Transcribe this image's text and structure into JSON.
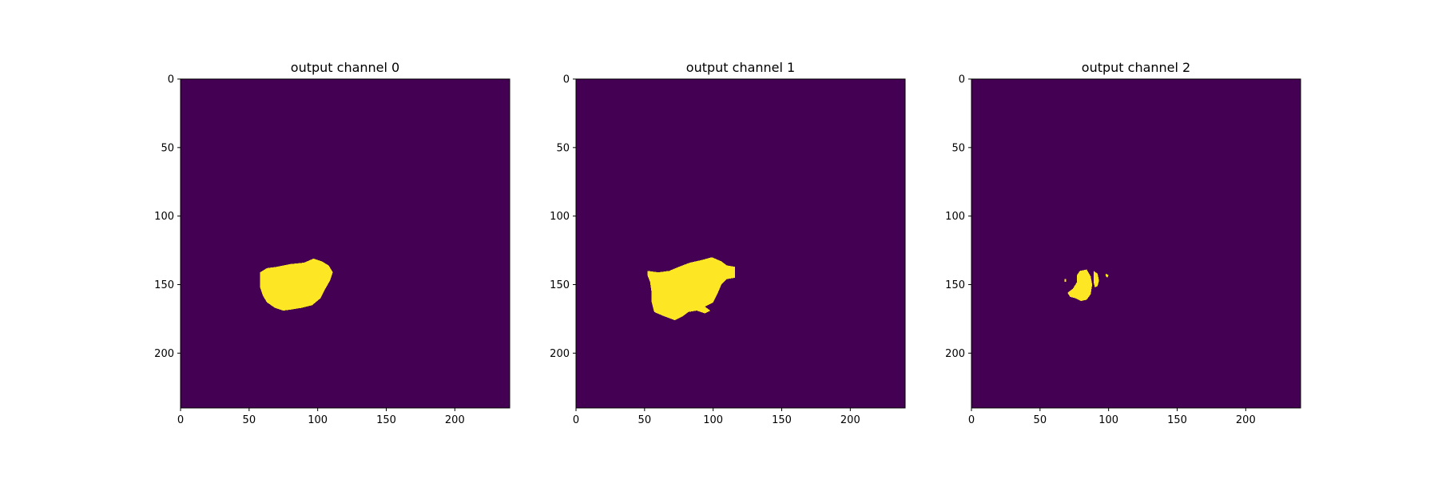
{
  "chart_data": [
    {
      "type": "heatmap",
      "title": "output channel 0",
      "xlabel": "",
      "ylabel": "",
      "xlim": [
        0,
        240
      ],
      "ylim": [
        240,
        0
      ],
      "xticks": [
        0,
        50,
        100,
        150,
        200
      ],
      "yticks": [
        0,
        50,
        100,
        150,
        200
      ],
      "colors": {
        "background": "#440154",
        "mask": "#fde725"
      },
      "mask_outline": [
        [
          58,
          141
        ],
        [
          63,
          138
        ],
        [
          70,
          137
        ],
        [
          80,
          135
        ],
        [
          90,
          134
        ],
        [
          97,
          131
        ],
        [
          103,
          133
        ],
        [
          108,
          136
        ],
        [
          111,
          141
        ],
        [
          109,
          147
        ],
        [
          105,
          154
        ],
        [
          102,
          160
        ],
        [
          96,
          165
        ],
        [
          88,
          167
        ],
        [
          82,
          168
        ],
        [
          75,
          169
        ],
        [
          69,
          167
        ],
        [
          63,
          163
        ],
        [
          60,
          158
        ],
        [
          58,
          152
        ],
        [
          58,
          146
        ]
      ]
    },
    {
      "type": "heatmap",
      "title": "output channel 1",
      "xlabel": "",
      "ylabel": "",
      "xlim": [
        0,
        240
      ],
      "ylim": [
        240,
        0
      ],
      "xticks": [
        0,
        50,
        100,
        150,
        200
      ],
      "yticks": [
        0,
        50,
        100,
        150,
        200
      ],
      "colors": {
        "background": "#440154",
        "mask": "#fde725"
      },
      "mask_outline": [
        [
          52,
          140
        ],
        [
          60,
          141
        ],
        [
          68,
          140
        ],
        [
          75,
          137
        ],
        [
          83,
          134
        ],
        [
          92,
          132
        ],
        [
          99,
          130
        ],
        [
          106,
          133
        ],
        [
          110,
          136
        ],
        [
          116,
          137
        ],
        [
          116,
          145
        ],
        [
          110,
          146
        ],
        [
          106,
          150
        ],
        [
          103,
          157
        ],
        [
          100,
          163
        ],
        [
          94,
          166
        ],
        [
          98,
          169
        ],
        [
          94,
          171
        ],
        [
          88,
          169
        ],
        [
          82,
          170
        ],
        [
          78,
          173
        ],
        [
          72,
          176
        ],
        [
          64,
          173
        ],
        [
          57,
          170
        ],
        [
          55,
          162
        ],
        [
          55,
          155
        ],
        [
          54,
          148
        ],
        [
          52,
          143
        ]
      ]
    },
    {
      "type": "heatmap",
      "title": "output channel 2",
      "xlabel": "",
      "ylabel": "",
      "xlim": [
        0,
        240
      ],
      "ylim": [
        240,
        0
      ],
      "xticks": [
        0,
        50,
        100,
        150,
        200
      ],
      "yticks": [
        0,
        50,
        100,
        150,
        200
      ],
      "colors": {
        "background": "#440154",
        "mask": "#fde725"
      },
      "mask_blobs": [
        [
          [
            79,
            140
          ],
          [
            84,
            139
          ],
          [
            87,
            144
          ],
          [
            88,
            150
          ],
          [
            87,
            157
          ],
          [
            84,
            161
          ],
          [
            80,
            162
          ],
          [
            76,
            160
          ],
          [
            72,
            159
          ],
          [
            70,
            156
          ],
          [
            74,
            153
          ],
          [
            77,
            148
          ],
          [
            77,
            143
          ]
        ],
        [
          [
            89,
            140
          ],
          [
            92,
            142
          ],
          [
            93,
            147
          ],
          [
            92,
            151
          ],
          [
            90,
            152
          ],
          [
            89,
            148
          ]
        ],
        [
          [
            98,
            142
          ],
          [
            100,
            143
          ],
          [
            99,
            145
          ],
          [
            98,
            144
          ]
        ],
        [
          [
            68,
            146
          ],
          [
            69,
            146
          ],
          [
            69,
            148
          ],
          [
            68,
            148
          ]
        ]
      ]
    }
  ]
}
